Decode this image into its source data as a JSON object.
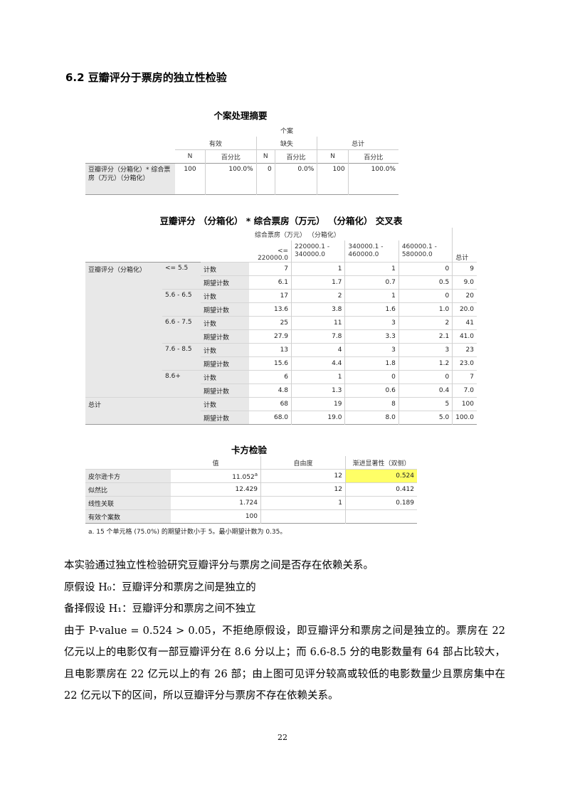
{
  "heading": "6.2 豆瓣评分于票房的独立性检验",
  "case_summary": {
    "title": "个案处理摘要",
    "group_header": "个案",
    "col_groups": [
      "有效",
      "缺失",
      "总计"
    ],
    "sub_cols": [
      "N",
      "百分比",
      "N",
      "百分比",
      "N",
      "百分比"
    ],
    "row_label": "豆瓣评分（分箱化）* 综合票房（万元）（分箱化）",
    "row_values": [
      "100",
      "100.0%",
      "0",
      "0.0%",
      "100",
      "100.0%"
    ]
  },
  "crosstab": {
    "title": "豆瓣评分 （分箱化） * 综合票房（万元） （分箱化） 交叉表",
    "col_group": "综合票房（万元） （分箱化）",
    "col_headers": [
      "<= 220000.0",
      "220000.1 - 340000.0",
      "340000.1 - 460000.0",
      "460000.1 - 580000.0",
      "总计"
    ],
    "row_var": "豆瓣评分（分箱化）",
    "total_label": "总计",
    "stat_labels": [
      "计数",
      "期望计数"
    ],
    "rows": [
      {
        "cat": "<= 5.5",
        "count": [
          "7",
          "1",
          "1",
          "0",
          "9"
        ],
        "expected": [
          "6.1",
          "1.7",
          "0.7",
          "0.5",
          "9.0"
        ]
      },
      {
        "cat": "5.6 - 6.5",
        "count": [
          "17",
          "2",
          "1",
          "0",
          "20"
        ],
        "expected": [
          "13.6",
          "3.8",
          "1.6",
          "1.0",
          "20.0"
        ]
      },
      {
        "cat": "6.6 - 7.5",
        "count": [
          "25",
          "11",
          "3",
          "2",
          "41"
        ],
        "expected": [
          "27.9",
          "7.8",
          "3.3",
          "2.1",
          "41.0"
        ]
      },
      {
        "cat": "7.6 - 8.5",
        "count": [
          "13",
          "4",
          "3",
          "3",
          "23"
        ],
        "expected": [
          "15.6",
          "4.4",
          "1.8",
          "1.2",
          "23.0"
        ]
      },
      {
        "cat": "8.6+",
        "count": [
          "6",
          "1",
          "0",
          "0",
          "7"
        ],
        "expected": [
          "4.8",
          "1.3",
          "0.6",
          "0.4",
          "7.0"
        ]
      }
    ],
    "total": {
      "count": [
        "68",
        "19",
        "8",
        "5",
        "100"
      ],
      "expected": [
        "68.0",
        "19.0",
        "8.0",
        "5.0",
        "100.0"
      ]
    }
  },
  "chisq": {
    "title": "卡方检验",
    "col_headers": [
      "值",
      "自由度",
      "渐进显著性（双侧）"
    ],
    "rows": [
      {
        "label": "皮尔逊卡方",
        "value": "11.052",
        "sup": "a",
        "df": "12",
        "sig": "0.524"
      },
      {
        "label": "似然比",
        "value": "12.429",
        "sup": "",
        "df": "12",
        "sig": "0.412"
      },
      {
        "label": "线性关联",
        "value": "1.724",
        "sup": "",
        "df": "1",
        "sig": "0.189"
      },
      {
        "label": "有效个案数",
        "value": "100",
        "sup": "",
        "df": "",
        "sig": ""
      }
    ],
    "note": "a. 15 个单元格 (75.0%) 的期望计数小于 5。最小期望计数为 0.35。",
    "highlight_color": "#ffff66"
  },
  "paragraphs": [
    "本实验通过独立性检验研究豆瓣评分与票房之间是否存在依赖关系。",
    "原假设 H₀：豆瓣评分和票房之间是独立的",
    "备择假设 H₁：豆瓣评分和票房之间不独立",
    "由于 P-value = 0.524 > 0.05，不拒绝原假设，即豆瓣评分和票房之间是独立的。票房在 22 亿元以上的电影仅有一部豆瓣评分在 8.6 分以上；而 6.6-8.5 分的电影数量有 64 部占比较大，且电影票房在 22 亿元以上的有 26 部；由上图可见评分较高或较低的电影数量少且票房集中在 22 亿元以下的区间，所以豆瓣评分与票房不存在依赖关系。"
  ],
  "page_number": "22"
}
